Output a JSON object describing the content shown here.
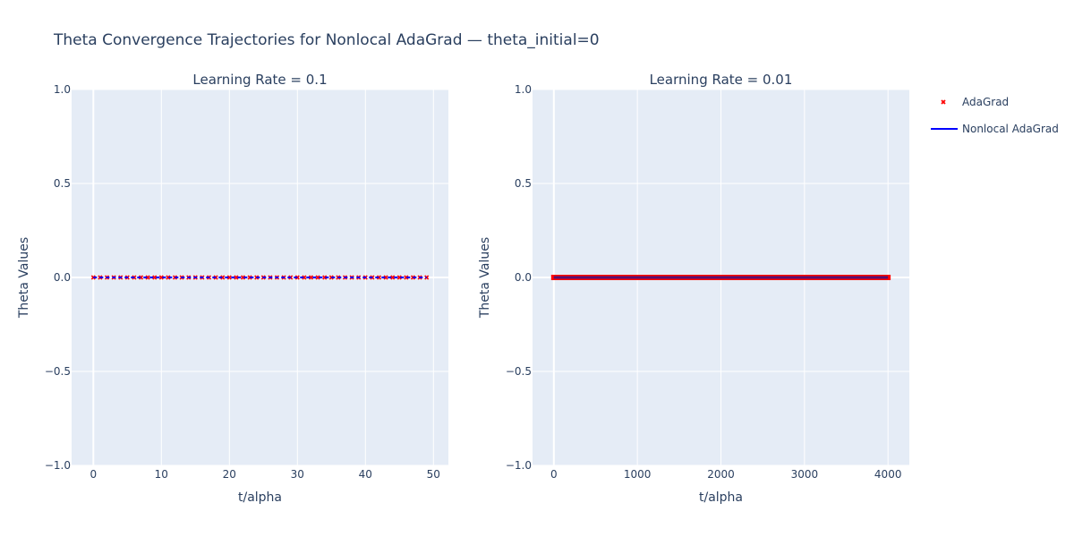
{
  "chart_data": {
    "title": "Theta Convergence Trajectories for Nonlocal AdaGrad — theta_initial=0",
    "legend": [
      {
        "name": "AdaGrad",
        "marker": "x",
        "color": "#ff0000"
      },
      {
        "name": "Nonlocal AdaGrad",
        "marker": "line",
        "color": "#0000ff"
      }
    ],
    "legend_placement": "right",
    "colors": {
      "plot_bg": "#e5ecf6",
      "grid": "#ffffff",
      "text": "#2a3f5f"
    },
    "panels": [
      {
        "type": "line",
        "subtitle": "Learning Rate = 0.1",
        "xlabel": "t/alpha",
        "ylabel": "Theta Values",
        "xlim": [
          -3.2,
          52.2
        ],
        "ylim": [
          -1,
          1
        ],
        "xticks": [
          0,
          10,
          20,
          30,
          40,
          50
        ],
        "xtick_labels": [
          "0",
          "10",
          "20",
          "30",
          "40",
          "50"
        ],
        "yticks": [
          -1,
          -0.5,
          0,
          0.5,
          1
        ],
        "ytick_labels": [
          "−1.0",
          "−0.5",
          "0.0",
          "0.5",
          "1.0"
        ],
        "grid": true,
        "series": [
          {
            "name": "AdaGrad",
            "x_range": [
              0,
              49
            ],
            "x_step": 1,
            "y": 0
          },
          {
            "name": "Nonlocal AdaGrad",
            "x_range": [
              0,
              49
            ],
            "x_step": 1,
            "y": 0
          }
        ]
      },
      {
        "type": "line",
        "subtitle": "Learning Rate = 0.01",
        "xlabel": "t/alpha",
        "ylabel": "Theta Values",
        "xlim": [
          -255,
          4255
        ],
        "ylim": [
          -1,
          1
        ],
        "xticks": [
          0,
          1000,
          2000,
          3000,
          4000
        ],
        "xtick_labels": [
          "0",
          "1000",
          "2000",
          "3000",
          "4000"
        ],
        "yticks": [
          -1,
          -0.5,
          0,
          0.5,
          1
        ],
        "ytick_labels": [
          "−1.0",
          "−0.5",
          "0.0",
          "0.5",
          "1.0"
        ],
        "grid": true,
        "series": [
          {
            "name": "AdaGrad",
            "x_range": [
              0,
              3999
            ],
            "x_step": 1,
            "y": 0
          },
          {
            "name": "Nonlocal AdaGrad",
            "x_range": [
              0,
              3999
            ],
            "x_step": 1,
            "y": 0
          }
        ]
      }
    ]
  }
}
